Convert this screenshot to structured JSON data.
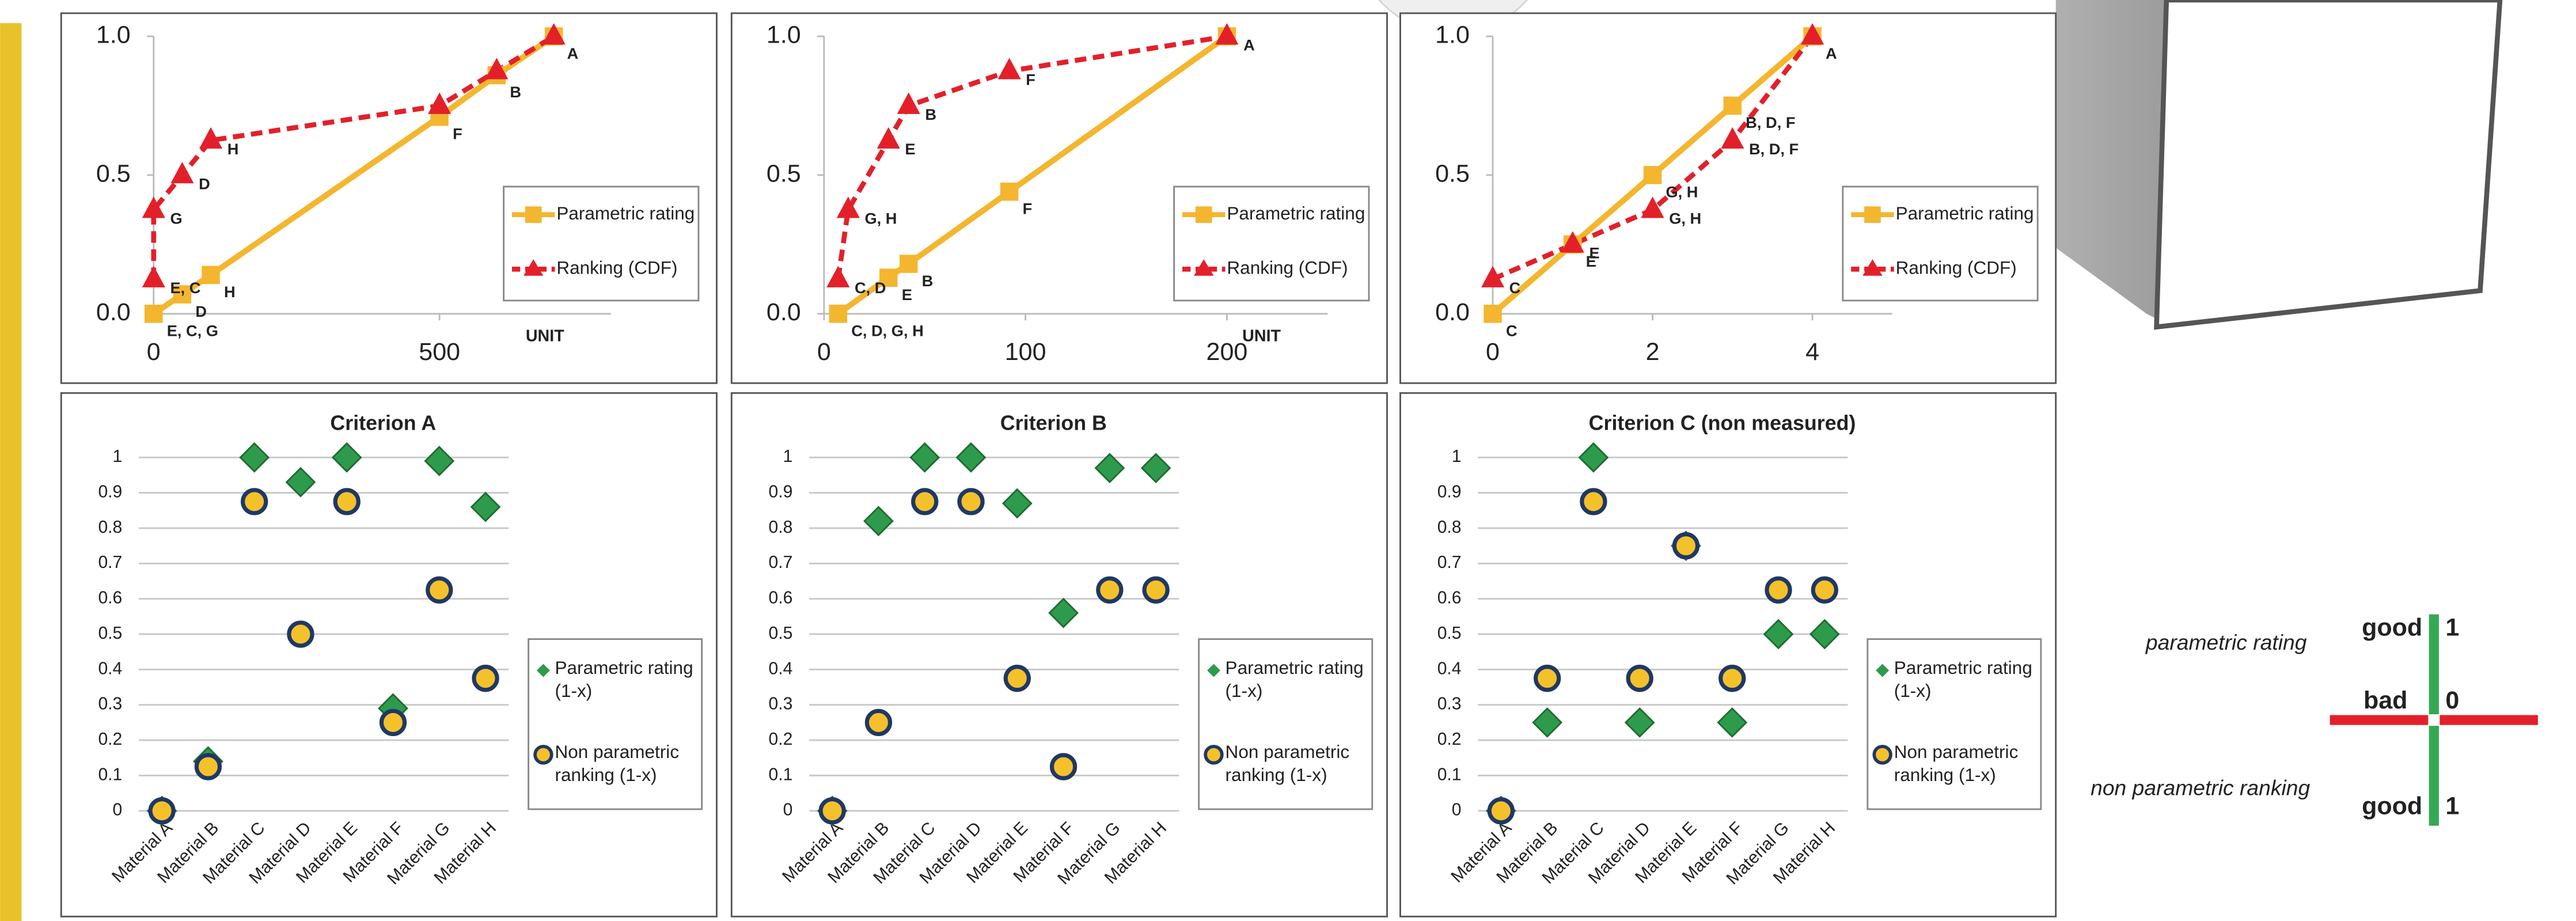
{
  "chart_data": [
    {
      "type": "line",
      "xlim": [
        0,
        800
      ],
      "xticks": [
        0,
        500
      ],
      "x_label": "UNIT",
      "ylim": [
        0,
        1
      ],
      "yticks": [
        {
          "value": 0,
          "label": "0.0"
        },
        {
          "value": 0.5,
          "label": "0.5"
        },
        {
          "value": 1,
          "label": "1.0"
        }
      ],
      "series": [
        {
          "name": "Parametric rating",
          "color": "#f4b62f",
          "marker": "square",
          "dashed": false,
          "x": [
            0,
            50,
            100,
            500,
            600,
            700
          ],
          "values": [
            0,
            0.07,
            0.14,
            0.71,
            0.86,
            1
          ],
          "point_labels": [
            "E, C, G",
            "D",
            "H",
            "F",
            "B",
            "A"
          ]
        },
        {
          "name": "Ranking (CDF)",
          "color": "#e3202a",
          "marker": "triangle",
          "dashed": true,
          "x": [
            0,
            0,
            50,
            100,
            500,
            600,
            700
          ],
          "values": [
            0.125,
            0.375,
            0.5,
            0.625,
            0.75,
            0.875,
            1
          ],
          "point_labels": [
            "E, C",
            "G",
            "D",
            "H",
            null,
            null,
            null
          ]
        }
      ]
    },
    {
      "type": "line",
      "xlim": [
        0,
        250
      ],
      "xticks": [
        0,
        100,
        200
      ],
      "x_label": "UNIT",
      "ylim": [
        0,
        1
      ],
      "yticks": [
        {
          "value": 0,
          "label": "0.0"
        },
        {
          "value": 0.5,
          "label": "0.5"
        },
        {
          "value": 1,
          "label": "1.0"
        }
      ],
      "series": [
        {
          "name": "Parametric rating",
          "color": "#f4b62f",
          "marker": "square",
          "dashed": false,
          "x": [
            7,
            32,
            42,
            92,
            200
          ],
          "values": [
            0,
            0.13,
            0.18,
            0.44,
            1
          ],
          "point_labels": [
            "C, D, G, H",
            "E",
            "B",
            "F",
            null
          ]
        },
        {
          "name": "Ranking (CDF)",
          "color": "#e3202a",
          "marker": "triangle",
          "dashed": true,
          "x": [
            7,
            12,
            32,
            42,
            92,
            200
          ],
          "values": [
            0.125,
            0.375,
            0.625,
            0.75,
            0.875,
            1
          ],
          "point_labels": [
            "C, D",
            "G, H",
            "E",
            "B",
            "F",
            "A"
          ]
        }
      ]
    },
    {
      "type": "line",
      "xlim": [
        0,
        5
      ],
      "xticks": [
        0,
        2,
        4
      ],
      "ylim": [
        0,
        1
      ],
      "yticks": [
        {
          "value": 0,
          "label": "0.0"
        },
        {
          "value": 0.5,
          "label": "0.5"
        },
        {
          "value": 1,
          "label": "1.0"
        }
      ],
      "series": [
        {
          "name": "Parametric rating",
          "color": "#f4b62f",
          "marker": "square",
          "dashed": false,
          "x": [
            0,
            1,
            2,
            3,
            4
          ],
          "values": [
            0,
            0.25,
            0.5,
            0.75,
            1
          ],
          "point_labels": [
            "C",
            "E",
            "G, H",
            "B, D, F",
            "A"
          ]
        },
        {
          "name": "Ranking (CDF)",
          "color": "#e3202a",
          "marker": "triangle",
          "dashed": true,
          "x": [
            0,
            1,
            2,
            3,
            4
          ],
          "values": [
            0.125,
            0.25,
            0.375,
            0.625,
            1
          ],
          "point_labels": [
            "C",
            "E",
            "G, H",
            "B, D, F",
            null
          ]
        }
      ]
    },
    {
      "type": "scatter",
      "title": "Criterion A",
      "categories": [
        "Material A",
        "Material B",
        "Material C",
        "Material D",
        "Material E",
        "Material F",
        "Material G",
        "Material H"
      ],
      "ylim": [
        0,
        1
      ],
      "yticks": [
        0,
        0.1,
        0.2,
        0.3,
        0.4,
        0.5,
        0.6,
        0.7,
        0.8,
        0.9,
        1
      ],
      "grid": true,
      "series": [
        {
          "name": "Parametric rating (1-x)",
          "color": "#2e9b4c",
          "marker": "diamond",
          "values": [
            0,
            0.14,
            1,
            0.93,
            1,
            0.29,
            0.99,
            0.86
          ]
        },
        {
          "name": "Non parametric ranking (1-x)",
          "color": "#f5c12b",
          "marker": "circle",
          "values": [
            0,
            0.125,
            0.875,
            0.5,
            0.875,
            0.25,
            0.625,
            0.375
          ]
        }
      ]
    },
    {
      "type": "scatter",
      "title": "Criterion B",
      "categories": [
        "Material A",
        "Material B",
        "Material C",
        "Material D",
        "Material E",
        "Material F",
        "Material G",
        "Material H"
      ],
      "ylim": [
        0,
        1
      ],
      "yticks": [
        0,
        0.1,
        0.2,
        0.3,
        0.4,
        0.5,
        0.6,
        0.7,
        0.8,
        0.9,
        1
      ],
      "grid": true,
      "series": [
        {
          "name": "Parametric rating (1-x)",
          "color": "#2e9b4c",
          "marker": "diamond",
          "values": [
            0,
            0.82,
            1,
            1,
            0.87,
            0.56,
            0.97,
            0.97
          ]
        },
        {
          "name": "Non parametric ranking (1-x)",
          "color": "#f5c12b",
          "marker": "circle",
          "values": [
            0,
            0.25,
            0.875,
            0.875,
            0.375,
            0.125,
            0.625,
            0.625
          ]
        }
      ]
    },
    {
      "type": "scatter",
      "title": "Criterion C (non measured)",
      "categories": [
        "Material A",
        "Material B",
        "Material C",
        "Material D",
        "Material E",
        "Material F",
        "Material G",
        "Material H"
      ],
      "ylim": [
        0,
        1
      ],
      "yticks": [
        0,
        0.1,
        0.2,
        0.3,
        0.4,
        0.5,
        0.6,
        0.7,
        0.8,
        0.9,
        1
      ],
      "grid": true,
      "series": [
        {
          "name": "Parametric rating (1-x)",
          "color": "#2e9b4c",
          "marker": "diamond",
          "values": [
            0,
            0.25,
            1,
            0.25,
            0.75,
            0.25,
            0.5,
            0.5
          ]
        },
        {
          "name": "Non parametric ranking (1-x)",
          "color": "#f5c12b",
          "marker": "circle",
          "values": [
            0,
            0.375,
            0.875,
            0.375,
            0.75,
            0.375,
            0.625,
            0.625
          ]
        }
      ]
    }
  ],
  "legend_diagram": {
    "parametric_label": "parametric rating",
    "ranking_label": "non parametric ranking",
    "top": [
      "good",
      1
    ],
    "middle": [
      "bad",
      0
    ],
    "bottom": [
      "good",
      1
    ]
  }
}
